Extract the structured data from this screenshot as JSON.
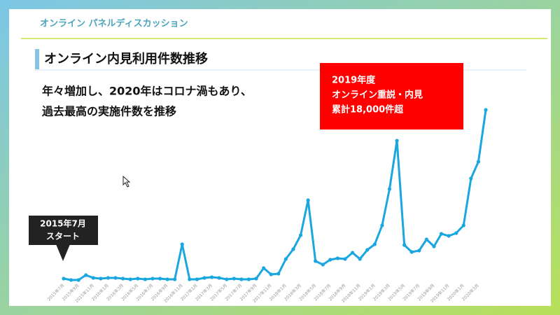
{
  "header": {
    "title": "オンライン パネルディスカッション"
  },
  "slide": {
    "title": "オンライン内見利用件数推移",
    "lead": [
      "年々増加し、2020年はコロナ渦もあり、",
      "過去最高の実施件数を推移"
    ],
    "highlight": [
      "2019年度",
      "オンライン重説・内見",
      "累計18,000件超"
    ],
    "callout": [
      "2015年7月",
      "スタート"
    ]
  },
  "chart_data": {
    "type": "line",
    "color": "#1aa7e0",
    "categories": [
      "2015年7月",
      null,
      "2015年9月",
      null,
      "2015年11月",
      null,
      "2016年1月",
      null,
      "2016年3月",
      null,
      "2016年5月",
      null,
      "2016年7月",
      null,
      "2016年9月",
      null,
      "2016年11月",
      null,
      "2017年1月",
      null,
      "2017年3月",
      null,
      "2017年5月",
      null,
      "2017年7月",
      null,
      "2017年9月",
      null,
      "2017年11月",
      null,
      "2018年1月",
      null,
      "2018年3月",
      null,
      "2018年5月",
      null,
      "2018年7月",
      null,
      "2018年9月",
      null,
      "2018年11月",
      null,
      "2019年1月",
      null,
      "2019年3月",
      null,
      "2019年5月",
      null,
      "2019年7月",
      null,
      "2019年9月",
      null,
      "2019年11月",
      null,
      "2020年1月",
      null,
      "2020年3月",
      null
    ],
    "values": [
      10,
      0,
      0,
      35,
      15,
      10,
      15,
      15,
      10,
      5,
      10,
      5,
      10,
      10,
      5,
      5,
      255,
      5,
      5,
      15,
      20,
      15,
      5,
      10,
      5,
      5,
      10,
      85,
      40,
      45,
      150,
      220,
      320,
      570,
      135,
      110,
      145,
      155,
      150,
      195,
      150,
      215,
      255,
      390,
      650,
      995,
      250,
      200,
      210,
      290,
      240,
      330,
      315,
      335,
      390,
      725,
      845,
      1215
    ],
    "ylim": [
      0,
      1300
    ]
  }
}
